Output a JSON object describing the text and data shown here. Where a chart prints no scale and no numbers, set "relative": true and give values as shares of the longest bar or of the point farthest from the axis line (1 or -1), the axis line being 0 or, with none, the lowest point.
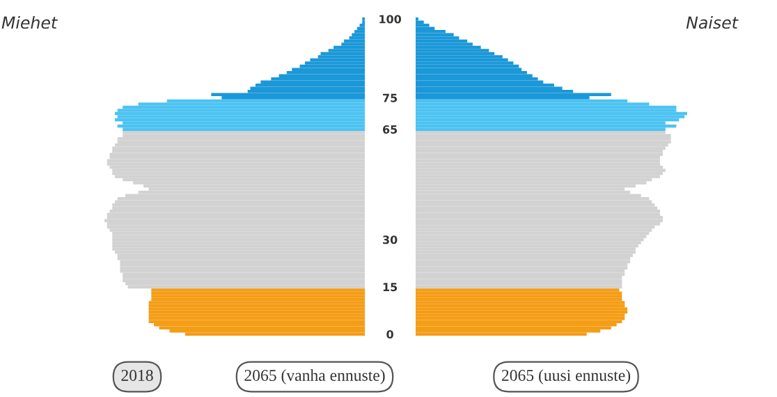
{
  "chart_data": [
    {
      "type": "bar",
      "orientation": "horizontal",
      "relative": true,
      "title": "Miehet",
      "categories": [
        "100",
        null,
        null,
        null,
        null,
        null,
        null,
        null,
        null,
        null,
        null,
        null,
        null,
        null,
        null,
        null,
        null,
        null,
        null,
        null,
        null,
        null,
        null,
        null,
        null,
        "75",
        null,
        null,
        null,
        null,
        null,
        null,
        null,
        null,
        null,
        "65",
        null,
        null,
        null,
        null,
        null,
        null,
        null,
        null,
        null,
        null,
        null,
        null,
        null,
        null,
        null,
        null,
        null,
        null,
        null,
        null,
        null,
        null,
        null,
        null,
        null,
        null,
        null,
        null,
        null,
        null,
        null,
        null,
        null,
        null,
        "30",
        null,
        null,
        null,
        null,
        null,
        null,
        null,
        null,
        null,
        null,
        null,
        null,
        null,
        null,
        "15",
        null,
        null,
        null,
        null,
        null,
        null,
        null,
        null,
        null,
        null,
        null,
        null,
        null,
        null,
        "0"
      ],
      "values": [
        0.01,
        0.01,
        0.02,
        0.03,
        0.04,
        0.05,
        0.06,
        0.08,
        0.09,
        0.12,
        0.14,
        0.17,
        0.18,
        0.21,
        0.23,
        0.25,
        0.28,
        0.3,
        0.33,
        0.36,
        0.4,
        0.42,
        0.44,
        0.45,
        0.59,
        0.55,
        0.76,
        0.87,
        0.93,
        0.95,
        0.96,
        0.95,
        0.96,
        0.93,
        0.95,
        0.93,
        0.93,
        0.93,
        0.95,
        0.95,
        0.96,
        0.97,
        0.97,
        0.98,
        0.98,
        0.99,
        0.99,
        0.98,
        0.97,
        0.97,
        0.96,
        0.93,
        0.89,
        0.85,
        0.83,
        0.87,
        0.92,
        0.95,
        0.96,
        0.97,
        0.97,
        0.98,
        0.99,
        0.99,
        1,
        0.99,
        0.99,
        0.98,
        0.97,
        0.97,
        0.97,
        0.97,
        0.97,
        0.97,
        0.96,
        0.95,
        0.95,
        0.94,
        0.94,
        0.94,
        0.94,
        0.93,
        0.93,
        0.93,
        0.92,
        0.91,
        0.82,
        0.82,
        0.82,
        0.82,
        0.83,
        0.83,
        0.83,
        0.83,
        0.83,
        0.83,
        0.83,
        0.81,
        0.79,
        0.75,
        0.69
      ],
      "colors": [
        "#1b98d8",
        "#1b98d8",
        "#1b98d8",
        "#1b98d8",
        "#1b98d8",
        "#1b98d8",
        "#1b98d8",
        "#1b98d8",
        "#1b98d8",
        "#1b98d8",
        "#1b98d8",
        "#1b98d8",
        "#1b98d8",
        "#1b98d8",
        "#1b98d8",
        "#1b98d8",
        "#1b98d8",
        "#1b98d8",
        "#1b98d8",
        "#1b98d8",
        "#1b98d8",
        "#1b98d8",
        "#1b98d8",
        "#1b98d8",
        "#1b98d8",
        "#1b98d8",
        "#4cc3f2",
        "#4cc3f2",
        "#4cc3f2",
        "#4cc3f2",
        "#4cc3f2",
        "#4cc3f2",
        "#4cc3f2",
        "#4cc3f2",
        "#4cc3f2",
        "#4cc3f2",
        "#d2d2d2",
        "#d2d2d2",
        "#d2d2d2",
        "#d2d2d2",
        "#d2d2d2",
        "#d2d2d2",
        "#d2d2d2",
        "#d2d2d2",
        "#d2d2d2",
        "#d2d2d2",
        "#d2d2d2",
        "#d2d2d2",
        "#d2d2d2",
        "#d2d2d2",
        "#d2d2d2",
        "#d2d2d2",
        "#d2d2d2",
        "#d2d2d2",
        "#d2d2d2",
        "#d2d2d2",
        "#d2d2d2",
        "#d2d2d2",
        "#d2d2d2",
        "#d2d2d2",
        "#d2d2d2",
        "#d2d2d2",
        "#d2d2d2",
        "#d2d2d2",
        "#d2d2d2",
        "#d2d2d2",
        "#d2d2d2",
        "#d2d2d2",
        "#d2d2d2",
        "#d2d2d2",
        "#d2d2d2",
        "#d2d2d2",
        "#d2d2d2",
        "#d2d2d2",
        "#d2d2d2",
        "#d2d2d2",
        "#d2d2d2",
        "#d2d2d2",
        "#d2d2d2",
        "#d2d2d2",
        "#d2d2d2",
        "#d2d2d2",
        "#d2d2d2",
        "#d2d2d2",
        "#d2d2d2",
        "#d2d2d2",
        "#f49d16",
        "#f49d16",
        "#f49d16",
        "#f49d16",
        "#f49d16",
        "#f49d16",
        "#f49d16",
        "#f49d16",
        "#f49d16",
        "#f49d16",
        "#f49d16",
        "#f49d16",
        "#f49d16",
        "#f49d16",
        "#f49d16"
      ],
      "annotations": [
        "2018",
        "2065 (vanha ennuste)",
        "2065 (uusi ennuste)"
      ]
    },
    {
      "type": "bar",
      "orientation": "horizontal",
      "relative": true,
      "title": "Naiset",
      "categories": [
        null,
        null,
        null,
        null,
        null,
        null,
        null,
        null,
        null,
        null,
        null,
        null,
        null,
        null,
        null,
        null,
        null,
        null,
        null,
        null,
        null,
        null,
        null,
        null,
        null,
        null,
        null,
        null,
        null,
        null,
        null,
        null,
        null,
        null,
        null,
        null,
        null,
        null,
        null,
        null,
        null,
        null,
        null,
        null,
        null,
        null,
        null,
        null,
        null,
        null,
        null,
        null,
        null,
        null,
        null,
        null,
        null,
        null,
        null,
        null,
        null,
        null,
        null,
        null,
        null,
        null,
        null,
        null,
        null,
        null,
        null,
        null,
        null,
        null,
        null,
        null,
        null,
        null,
        null,
        null,
        null,
        null,
        null,
        null,
        null,
        null,
        null,
        null,
        null,
        null,
        null,
        null,
        null,
        null,
        null,
        null,
        null,
        null,
        null,
        null,
        null
      ],
      "values": [
        0.01,
        0.03,
        0.05,
        0.07,
        0.11,
        0.14,
        0.16,
        0.19,
        0.21,
        0.24,
        0.27,
        0.29,
        0.32,
        0.34,
        0.36,
        0.38,
        0.39,
        0.41,
        0.43,
        0.45,
        0.47,
        0.51,
        0.54,
        0.58,
        0.72,
        0.64,
        0.78,
        0.86,
        0.96,
        0.96,
        1,
        0.99,
        0.97,
        0.92,
        0.96,
        0.92,
        0.92,
        0.94,
        0.94,
        0.94,
        0.93,
        0.92,
        0.91,
        0.91,
        0.9,
        0.9,
        0.9,
        0.91,
        0.92,
        0.91,
        0.9,
        0.87,
        0.85,
        0.81,
        0.77,
        0.79,
        0.83,
        0.86,
        0.87,
        0.88,
        0.89,
        0.9,
        0.9,
        0.91,
        0.91,
        0.9,
        0.88,
        0.87,
        0.86,
        0.85,
        0.84,
        0.83,
        0.82,
        0.81,
        0.81,
        0.8,
        0.79,
        0.79,
        0.78,
        0.78,
        0.77,
        0.77,
        0.76,
        0.76,
        0.76,
        0.76,
        0.75,
        0.76,
        0.76,
        0.76,
        0.77,
        0.77,
        0.78,
        0.78,
        0.77,
        0.77,
        0.76,
        0.74,
        0.72,
        0.68,
        0.63
      ],
      "colors": [
        "#1b98d8",
        "#1b98d8",
        "#1b98d8",
        "#1b98d8",
        "#1b98d8",
        "#1b98d8",
        "#1b98d8",
        "#1b98d8",
        "#1b98d8",
        "#1b98d8",
        "#1b98d8",
        "#1b98d8",
        "#1b98d8",
        "#1b98d8",
        "#1b98d8",
        "#1b98d8",
        "#1b98d8",
        "#1b98d8",
        "#1b98d8",
        "#1b98d8",
        "#1b98d8",
        "#1b98d8",
        "#1b98d8",
        "#1b98d8",
        "#1b98d8",
        "#1b98d8",
        "#4cc3f2",
        "#4cc3f2",
        "#4cc3f2",
        "#4cc3f2",
        "#4cc3f2",
        "#4cc3f2",
        "#4cc3f2",
        "#4cc3f2",
        "#4cc3f2",
        "#4cc3f2",
        "#d2d2d2",
        "#d2d2d2",
        "#d2d2d2",
        "#d2d2d2",
        "#d2d2d2",
        "#d2d2d2",
        "#d2d2d2",
        "#d2d2d2",
        "#d2d2d2",
        "#d2d2d2",
        "#d2d2d2",
        "#d2d2d2",
        "#d2d2d2",
        "#d2d2d2",
        "#d2d2d2",
        "#d2d2d2",
        "#d2d2d2",
        "#d2d2d2",
        "#d2d2d2",
        "#d2d2d2",
        "#d2d2d2",
        "#d2d2d2",
        "#d2d2d2",
        "#d2d2d2",
        "#d2d2d2",
        "#d2d2d2",
        "#d2d2d2",
        "#d2d2d2",
        "#d2d2d2",
        "#d2d2d2",
        "#d2d2d2",
        "#d2d2d2",
        "#d2d2d2",
        "#d2d2d2",
        "#d2d2d2",
        "#d2d2d2",
        "#d2d2d2",
        "#d2d2d2",
        "#d2d2d2",
        "#d2d2d2",
        "#d2d2d2",
        "#d2d2d2",
        "#d2d2d2",
        "#d2d2d2",
        "#d2d2d2",
        "#d2d2d2",
        "#d2d2d2",
        "#d2d2d2",
        "#d2d2d2",
        "#d2d2d2",
        "#f49d16",
        "#f49d16",
        "#f49d16",
        "#f49d16",
        "#f49d16",
        "#f49d16",
        "#f49d16",
        "#f49d16",
        "#f49d16",
        "#f49d16",
        "#f49d16",
        "#f49d16",
        "#f49d16",
        "#f49d16",
        "#f49d16"
      ]
    }
  ]
}
